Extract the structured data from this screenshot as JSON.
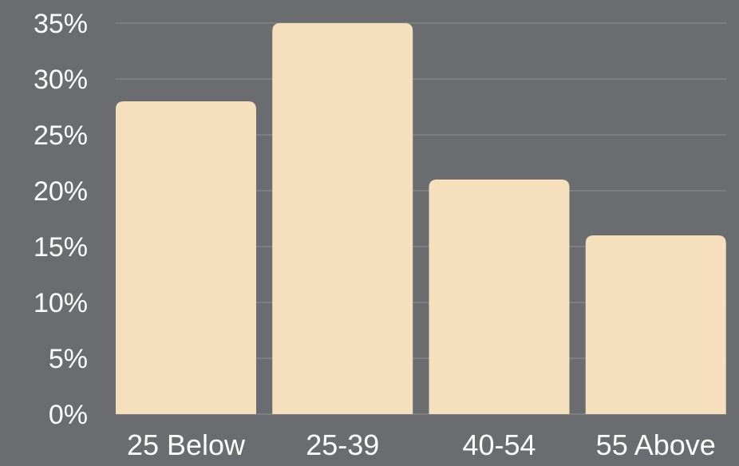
{
  "chart_data": {
    "type": "bar",
    "categories": [
      "25 Below",
      "25-39",
      "40-54",
      "55 Above"
    ],
    "values": [
      28,
      35,
      21,
      16
    ],
    "ylim": [
      0,
      35
    ],
    "yticks": [
      0,
      5,
      10,
      15,
      20,
      25,
      30,
      35
    ],
    "ytick_labels": [
      "0%",
      "5%",
      "10%",
      "15%",
      "20%",
      "25%",
      "30%",
      "35%"
    ],
    "title": "",
    "xlabel": "",
    "ylabel": "",
    "grid": true,
    "legend": "none"
  },
  "colors": {
    "background": "#6b6c70",
    "bar": "#f5dfbd",
    "gridline": "#8e8f93",
    "text": "#ffffff"
  }
}
